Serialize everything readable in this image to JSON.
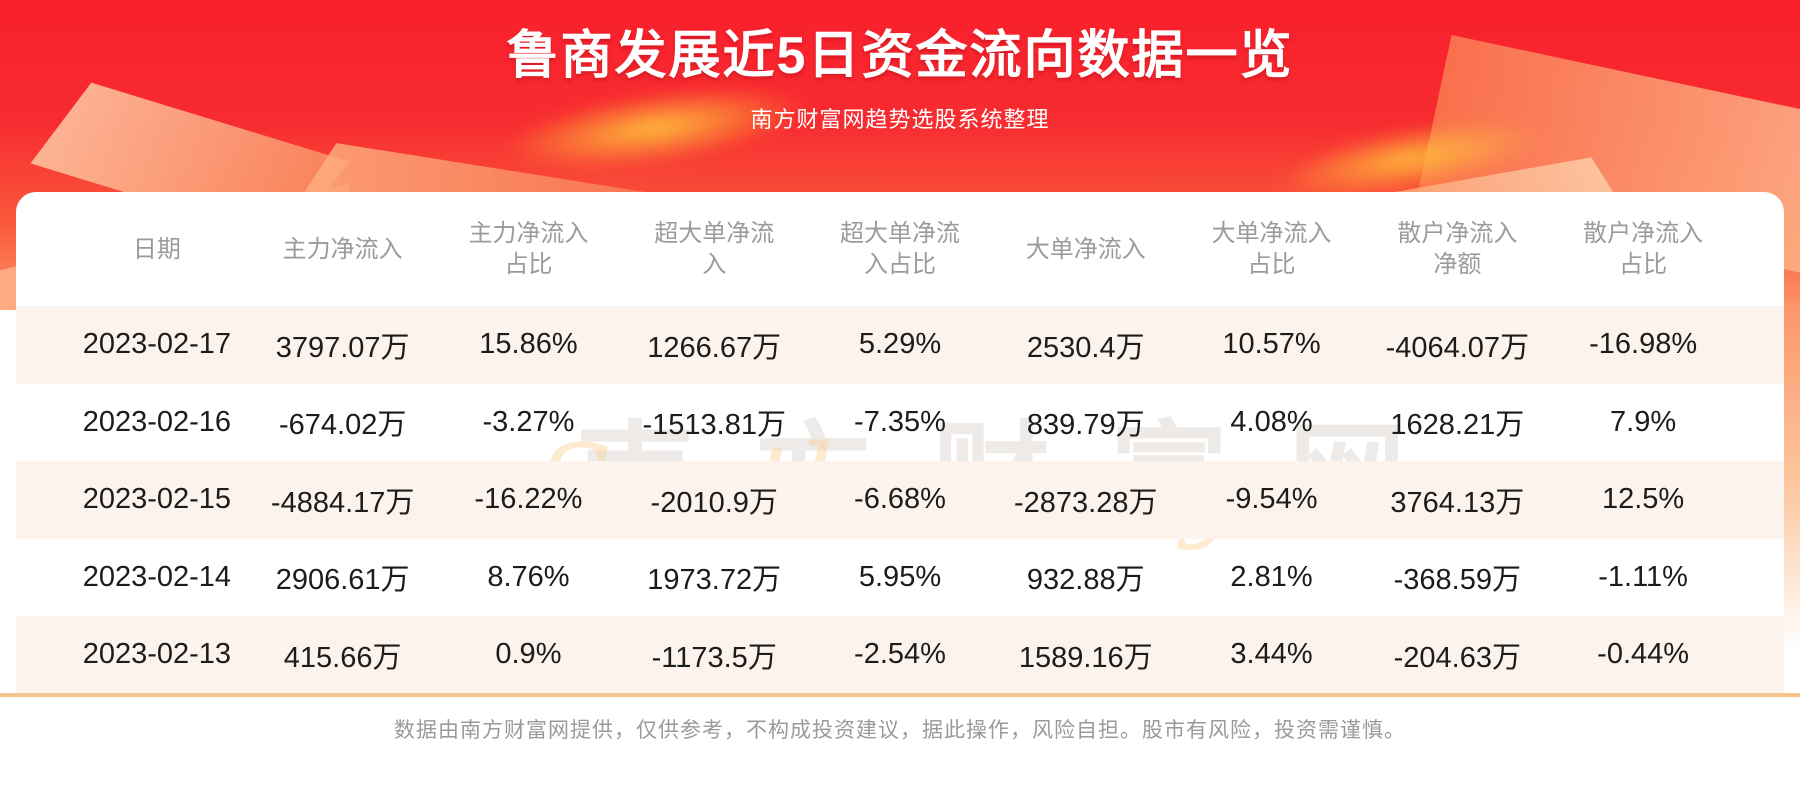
{
  "page": {
    "title": "鲁商发展近5日资金流向数据一览",
    "subtitle": "南方财富网趋势选股系统整理",
    "disclaimer": "数据由南方财富网提供，仅供参考，不构成投资建议，据此操作，风险自担。股市有风险，投资需谨慎。",
    "watermark_cn": "南方财富网",
    "watermark_en": "Southmoney.com"
  },
  "colors": {
    "banner_red_top": "#f91f2c",
    "banner_red_bottom": "#fc9468",
    "row_alt_pink": "#fcf3ed",
    "accent_line_orange": "#f7c690",
    "header_text_gray": "#9b9b9b",
    "body_text_black": "#1c1c1c",
    "footer_text_gray": "#9a9a9a"
  },
  "chart_data": {
    "type": "table",
    "title": "鲁商发展近5日资金流向数据一览",
    "subtitle": "南方财富网趋势选股系统整理",
    "columns": [
      {
        "l1": "日期",
        "l2": ""
      },
      {
        "l1": "主力净流入",
        "l2": ""
      },
      {
        "l1": "主力净流入",
        "l2": "占比"
      },
      {
        "l1": "超大单净流",
        "l2": "入"
      },
      {
        "l1": "超大单净流",
        "l2": "入占比"
      },
      {
        "l1": "大单净流入",
        "l2": ""
      },
      {
        "l1": "大单净流入",
        "l2": "占比"
      },
      {
        "l1": "散户净流入",
        "l2": "净额"
      },
      {
        "l1": "散户净流入",
        "l2": "占比"
      }
    ],
    "rows": [
      [
        "2023-02-17",
        "3797.07万",
        "15.86%",
        "1266.67万",
        "5.29%",
        "2530.4万",
        "10.57%",
        "-4064.07万",
        "-16.98%"
      ],
      [
        "2023-02-16",
        "-674.02万",
        "-3.27%",
        "-1513.81万",
        "-7.35%",
        "839.79万",
        "4.08%",
        "1628.21万",
        "7.9%"
      ],
      [
        "2023-02-15",
        "-4884.17万",
        "-16.22%",
        "-2010.9万",
        "-6.68%",
        "-2873.28万",
        "-9.54%",
        "3764.13万",
        "12.5%"
      ],
      [
        "2023-02-14",
        "2906.61万",
        "8.76%",
        "1973.72万",
        "5.95%",
        "932.88万",
        "2.81%",
        "-368.59万",
        "-1.11%"
      ],
      [
        "2023-02-13",
        "415.66万",
        "0.9%",
        "-1173.5万",
        "-2.54%",
        "1589.16万",
        "3.44%",
        "-204.63万",
        "-0.44%"
      ]
    ]
  }
}
